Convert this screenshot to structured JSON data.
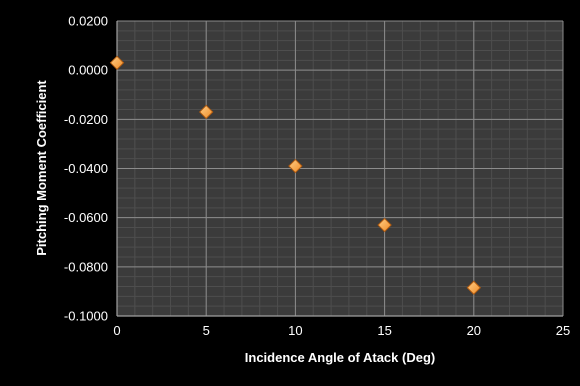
{
  "chart_data": {
    "type": "scatter",
    "title": "",
    "xlabel": "Incidence Angle of Atack (Deg)",
    "ylabel": "Pitching Moment Coefficient",
    "xlim": [
      0,
      25
    ],
    "ylim": [
      -0.1,
      0.02
    ],
    "x_ticks": [
      0,
      5,
      10,
      15,
      20,
      25
    ],
    "x_tick_labels": [
      "0",
      "5",
      "10",
      "15",
      "20",
      "25"
    ],
    "y_ticks": [
      0.02,
      0,
      -0.02,
      -0.04,
      -0.06,
      -0.08,
      -0.1
    ],
    "y_tick_labels": [
      "0.0200",
      "0.0000",
      "-0.0200",
      "-0.0400",
      "-0.0600",
      "-0.0800",
      "-0.1000"
    ],
    "grid": true,
    "minor_grid": true,
    "legend": "none",
    "series": [
      {
        "x": [
          0,
          5,
          10,
          15,
          20
        ],
        "y": [
          0.003,
          -0.017,
          -0.039,
          -0.063,
          -0.0885
        ],
        "marker": "diamond",
        "color": "#f08a24"
      }
    ]
  },
  "colors": {
    "page_background": "#000000",
    "plot_background": "#3b3b3b",
    "major_grid": "#8c8c8c",
    "minor_grid": "#4e4e4e",
    "axis_line": "#a0a0a0",
    "text": "#ffffff",
    "marker_fill": "#f08a24",
    "marker_highlight": "#ffd08a",
    "marker_stroke": "#b35c10"
  }
}
